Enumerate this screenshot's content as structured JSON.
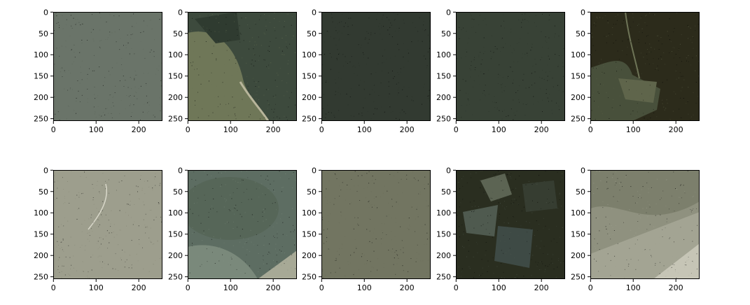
{
  "figure": {
    "background": "#ffffff",
    "axis_color": "#000000",
    "x_ticks": [
      "0",
      "100",
      "200"
    ],
    "y_ticks": [
      "0",
      "50",
      "100",
      "150",
      "200",
      "250"
    ],
    "panels": [
      {
        "id": "r1c1",
        "base": "#6a7469",
        "accent": "#566053",
        "texture": "fine"
      },
      {
        "id": "r1c2",
        "base": "#3d4a3d",
        "accent": "#6f7758",
        "texture": "landslide"
      },
      {
        "id": "r1c3",
        "base": "#323a31",
        "accent": "#263025",
        "texture": "fine"
      },
      {
        "id": "r1c4",
        "base": "#384236",
        "accent": "#2a3329",
        "texture": "fine"
      },
      {
        "id": "r1c5",
        "base": "#2c2b1b",
        "accent": "#5f654b",
        "texture": "river"
      },
      {
        "id": "r2c1",
        "base": "#9d9e8d",
        "accent": "#7d7e6c",
        "texture": "light"
      },
      {
        "id": "r2c2",
        "base": "#5d6d62",
        "accent": "#7f8e80",
        "texture": "mottled"
      },
      {
        "id": "r2c3",
        "base": "#727561",
        "accent": "#676a56",
        "texture": "fine"
      },
      {
        "id": "r2c4",
        "base": "#2a2e20",
        "accent": "#4f5a4f",
        "texture": "patches"
      },
      {
        "id": "r2c5",
        "base": "#7c7f6c",
        "accent": "#a3a493",
        "texture": "diagonal"
      }
    ]
  }
}
